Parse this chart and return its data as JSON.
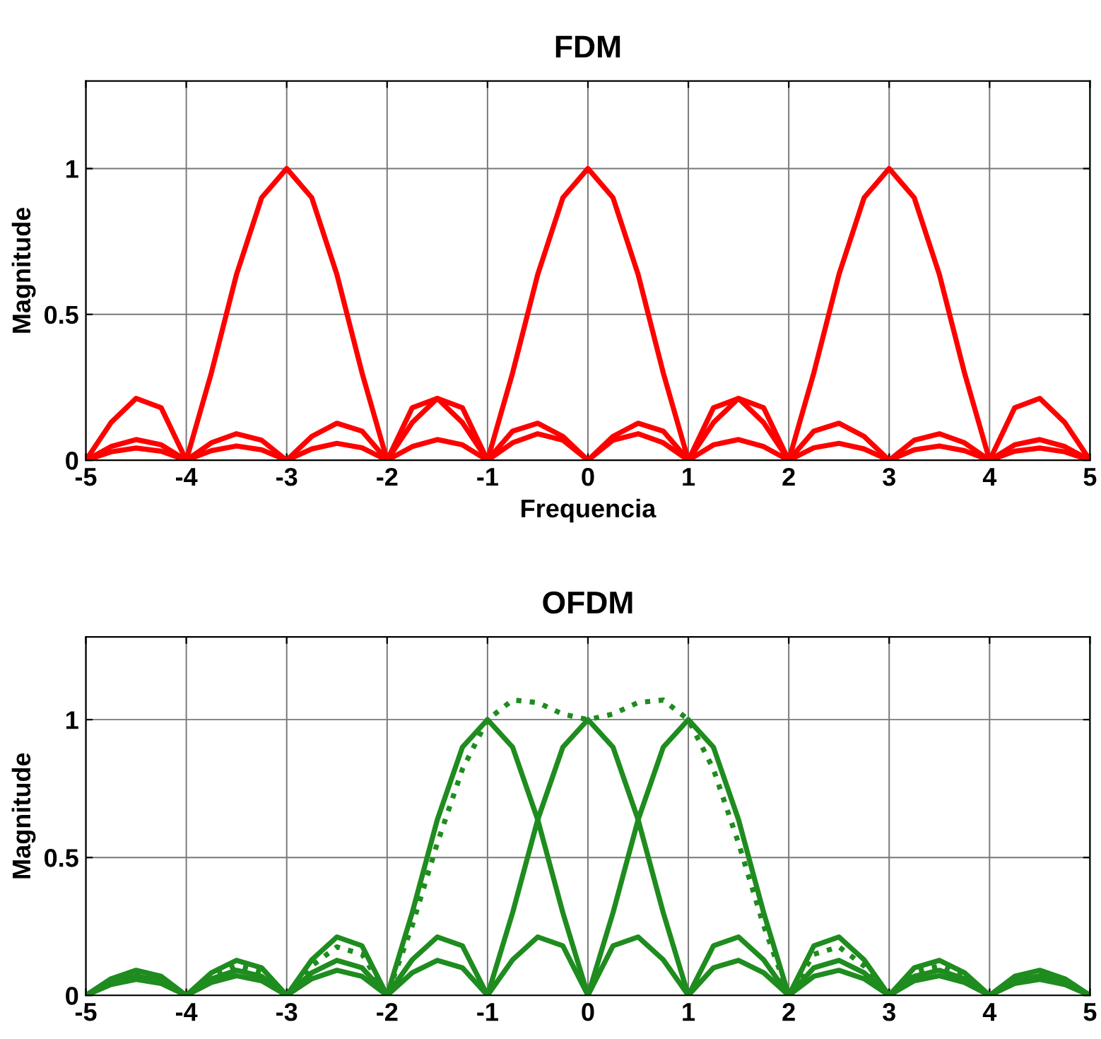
{
  "chart_data": [
    {
      "type": "line",
      "title": "FDM",
      "xlabel": "Frequencia",
      "ylabel": "Magnitude",
      "x": [
        -5,
        -4.75,
        -4.5,
        -4.25,
        -4,
        -3.75,
        -3.5,
        -3.25,
        -3,
        -2.75,
        -2.5,
        -2.25,
        -2,
        -1.75,
        -1.5,
        -1.25,
        -1,
        -0.75,
        -0.5,
        -0.25,
        0,
        0.25,
        0.5,
        0.75,
        1,
        1.25,
        1.5,
        1.75,
        2,
        2.25,
        2.5,
        2.75,
        3,
        3.25,
        3.5,
        3.75,
        4,
        4.25,
        4.5,
        4.75,
        5
      ],
      "xlim": [
        -5,
        5
      ],
      "ylim": [
        0,
        1.3
      ],
      "xticks": [
        -5,
        -4,
        -3,
        -2,
        -1,
        0,
        1,
        2,
        3,
        4,
        5
      ],
      "yticks": [
        0,
        0.5,
        1
      ],
      "grid": true,
      "line_style": "solid",
      "marker": "none",
      "series": [
        {
          "color": "#ff0000",
          "values": [
            0,
            0.129,
            0.212,
            0.18,
            0,
            0.3,
            0.637,
            0.9,
            1,
            0.9,
            0.637,
            0.3,
            0,
            0.18,
            0.212,
            0.129,
            0,
            0.1,
            0.127,
            0.082,
            0,
            0.069,
            0.091,
            0.06,
            0,
            0.053,
            0.071,
            0.047,
            0,
            0.043,
            0.058,
            0.039,
            0,
            0.036,
            0.049,
            0.033,
            0,
            0.031,
            0.042,
            0.029,
            0
          ]
        },
        {
          "color": "#ff0000",
          "values": [
            0,
            0.047,
            0.071,
            0.053,
            0,
            0.06,
            0.091,
            0.069,
            0,
            0.082,
            0.127,
            0.1,
            0,
            0.129,
            0.212,
            0.18,
            0,
            0.3,
            0.637,
            0.9,
            1,
            0.9,
            0.637,
            0.3,
            0,
            0.18,
            0.212,
            0.129,
            0,
            0.1,
            0.127,
            0.082,
            0,
            0.069,
            0.091,
            0.06,
            0,
            0.053,
            0.071,
            0.047,
            0
          ]
        },
        {
          "color": "#ff0000",
          "values": [
            0,
            0.029,
            0.042,
            0.031,
            0,
            0.033,
            0.049,
            0.036,
            0,
            0.039,
            0.058,
            0.043,
            0,
            0.047,
            0.071,
            0.053,
            0,
            0.06,
            0.091,
            0.069,
            0,
            0.082,
            0.127,
            0.1,
            0,
            0.129,
            0.212,
            0.18,
            0,
            0.3,
            0.637,
            0.9,
            1,
            0.9,
            0.637,
            0.3,
            0,
            0.18,
            0.212,
            0.129,
            0
          ]
        }
      ]
    },
    {
      "type": "line",
      "title": "OFDM",
      "ylabel": "Magnitude",
      "x": [
        -5,
        -4.75,
        -4.5,
        -4.25,
        -4,
        -3.75,
        -3.5,
        -3.25,
        -3,
        -2.75,
        -2.5,
        -2.25,
        -2,
        -1.75,
        -1.5,
        -1.25,
        -1,
        -0.75,
        -0.5,
        -0.25,
        0,
        0.25,
        0.5,
        0.75,
        1,
        1.25,
        1.5,
        1.75,
        2,
        2.25,
        2.5,
        2.75,
        3,
        3.25,
        3.5,
        3.75,
        4,
        4.25,
        4.5,
        4.75,
        5
      ],
      "xlim": [
        -5,
        5
      ],
      "ylim": [
        0,
        1.3
      ],
      "xticks": [
        -5,
        -4,
        -3,
        -2,
        -1,
        0,
        1,
        2,
        3,
        4,
        5
      ],
      "yticks": [
        0,
        0.5,
        1
      ],
      "grid": true,
      "line_style": "solid",
      "marker": "none",
      "series": [
        {
          "color": "#1e8c1e",
          "values": [
            0,
            0.06,
            0.091,
            0.069,
            0,
            0.082,
            0.127,
            0.1,
            0,
            0.129,
            0.212,
            0.18,
            0,
            0.3,
            0.637,
            0.9,
            1,
            0.9,
            0.637,
            0.3,
            0,
            0.18,
            0.212,
            0.129,
            0,
            0.1,
            0.127,
            0.082,
            0,
            0.069,
            0.091,
            0.06,
            0,
            0.053,
            0.071,
            0.047,
            0,
            0.043,
            0.058,
            0.039,
            0
          ]
        },
        {
          "color": "#1e8c1e",
          "values": [
            0,
            0.047,
            0.071,
            0.053,
            0,
            0.06,
            0.091,
            0.069,
            0,
            0.082,
            0.127,
            0.1,
            0,
            0.129,
            0.212,
            0.18,
            0,
            0.3,
            0.637,
            0.9,
            1,
            0.9,
            0.637,
            0.3,
            0,
            0.18,
            0.212,
            0.129,
            0,
            0.1,
            0.127,
            0.082,
            0,
            0.069,
            0.091,
            0.06,
            0,
            0.053,
            0.071,
            0.047,
            0
          ]
        },
        {
          "color": "#1e8c1e",
          "values": [
            0,
            0.039,
            0.058,
            0.043,
            0,
            0.047,
            0.071,
            0.053,
            0,
            0.06,
            0.091,
            0.069,
            0,
            0.082,
            0.127,
            0.1,
            0,
            0.129,
            0.212,
            0.18,
            0,
            0.3,
            0.637,
            0.9,
            1,
            0.9,
            0.637,
            0.3,
            0,
            0.18,
            0.212,
            0.129,
            0,
            0.1,
            0.127,
            0.082,
            0,
            0.069,
            0.091,
            0.06,
            0
          ]
        },
        {
          "color": "#1e8c1e",
          "line_style": "dotted",
          "values": [
            0,
            0.052,
            0.078,
            0.059,
            0,
            0.069,
            0.107,
            0.084,
            0,
            0.107,
            0.176,
            0.149,
            0,
            0.253,
            0.552,
            0.82,
            1,
            1.071,
            1.062,
            1.02,
            1,
            1.02,
            1.062,
            1.071,
            1,
            0.82,
            0.552,
            0.253,
            0,
            0.149,
            0.176,
            0.107,
            0,
            0.084,
            0.107,
            0.069,
            0,
            0.059,
            0.078,
            0.052,
            0
          ]
        }
      ]
    }
  ]
}
